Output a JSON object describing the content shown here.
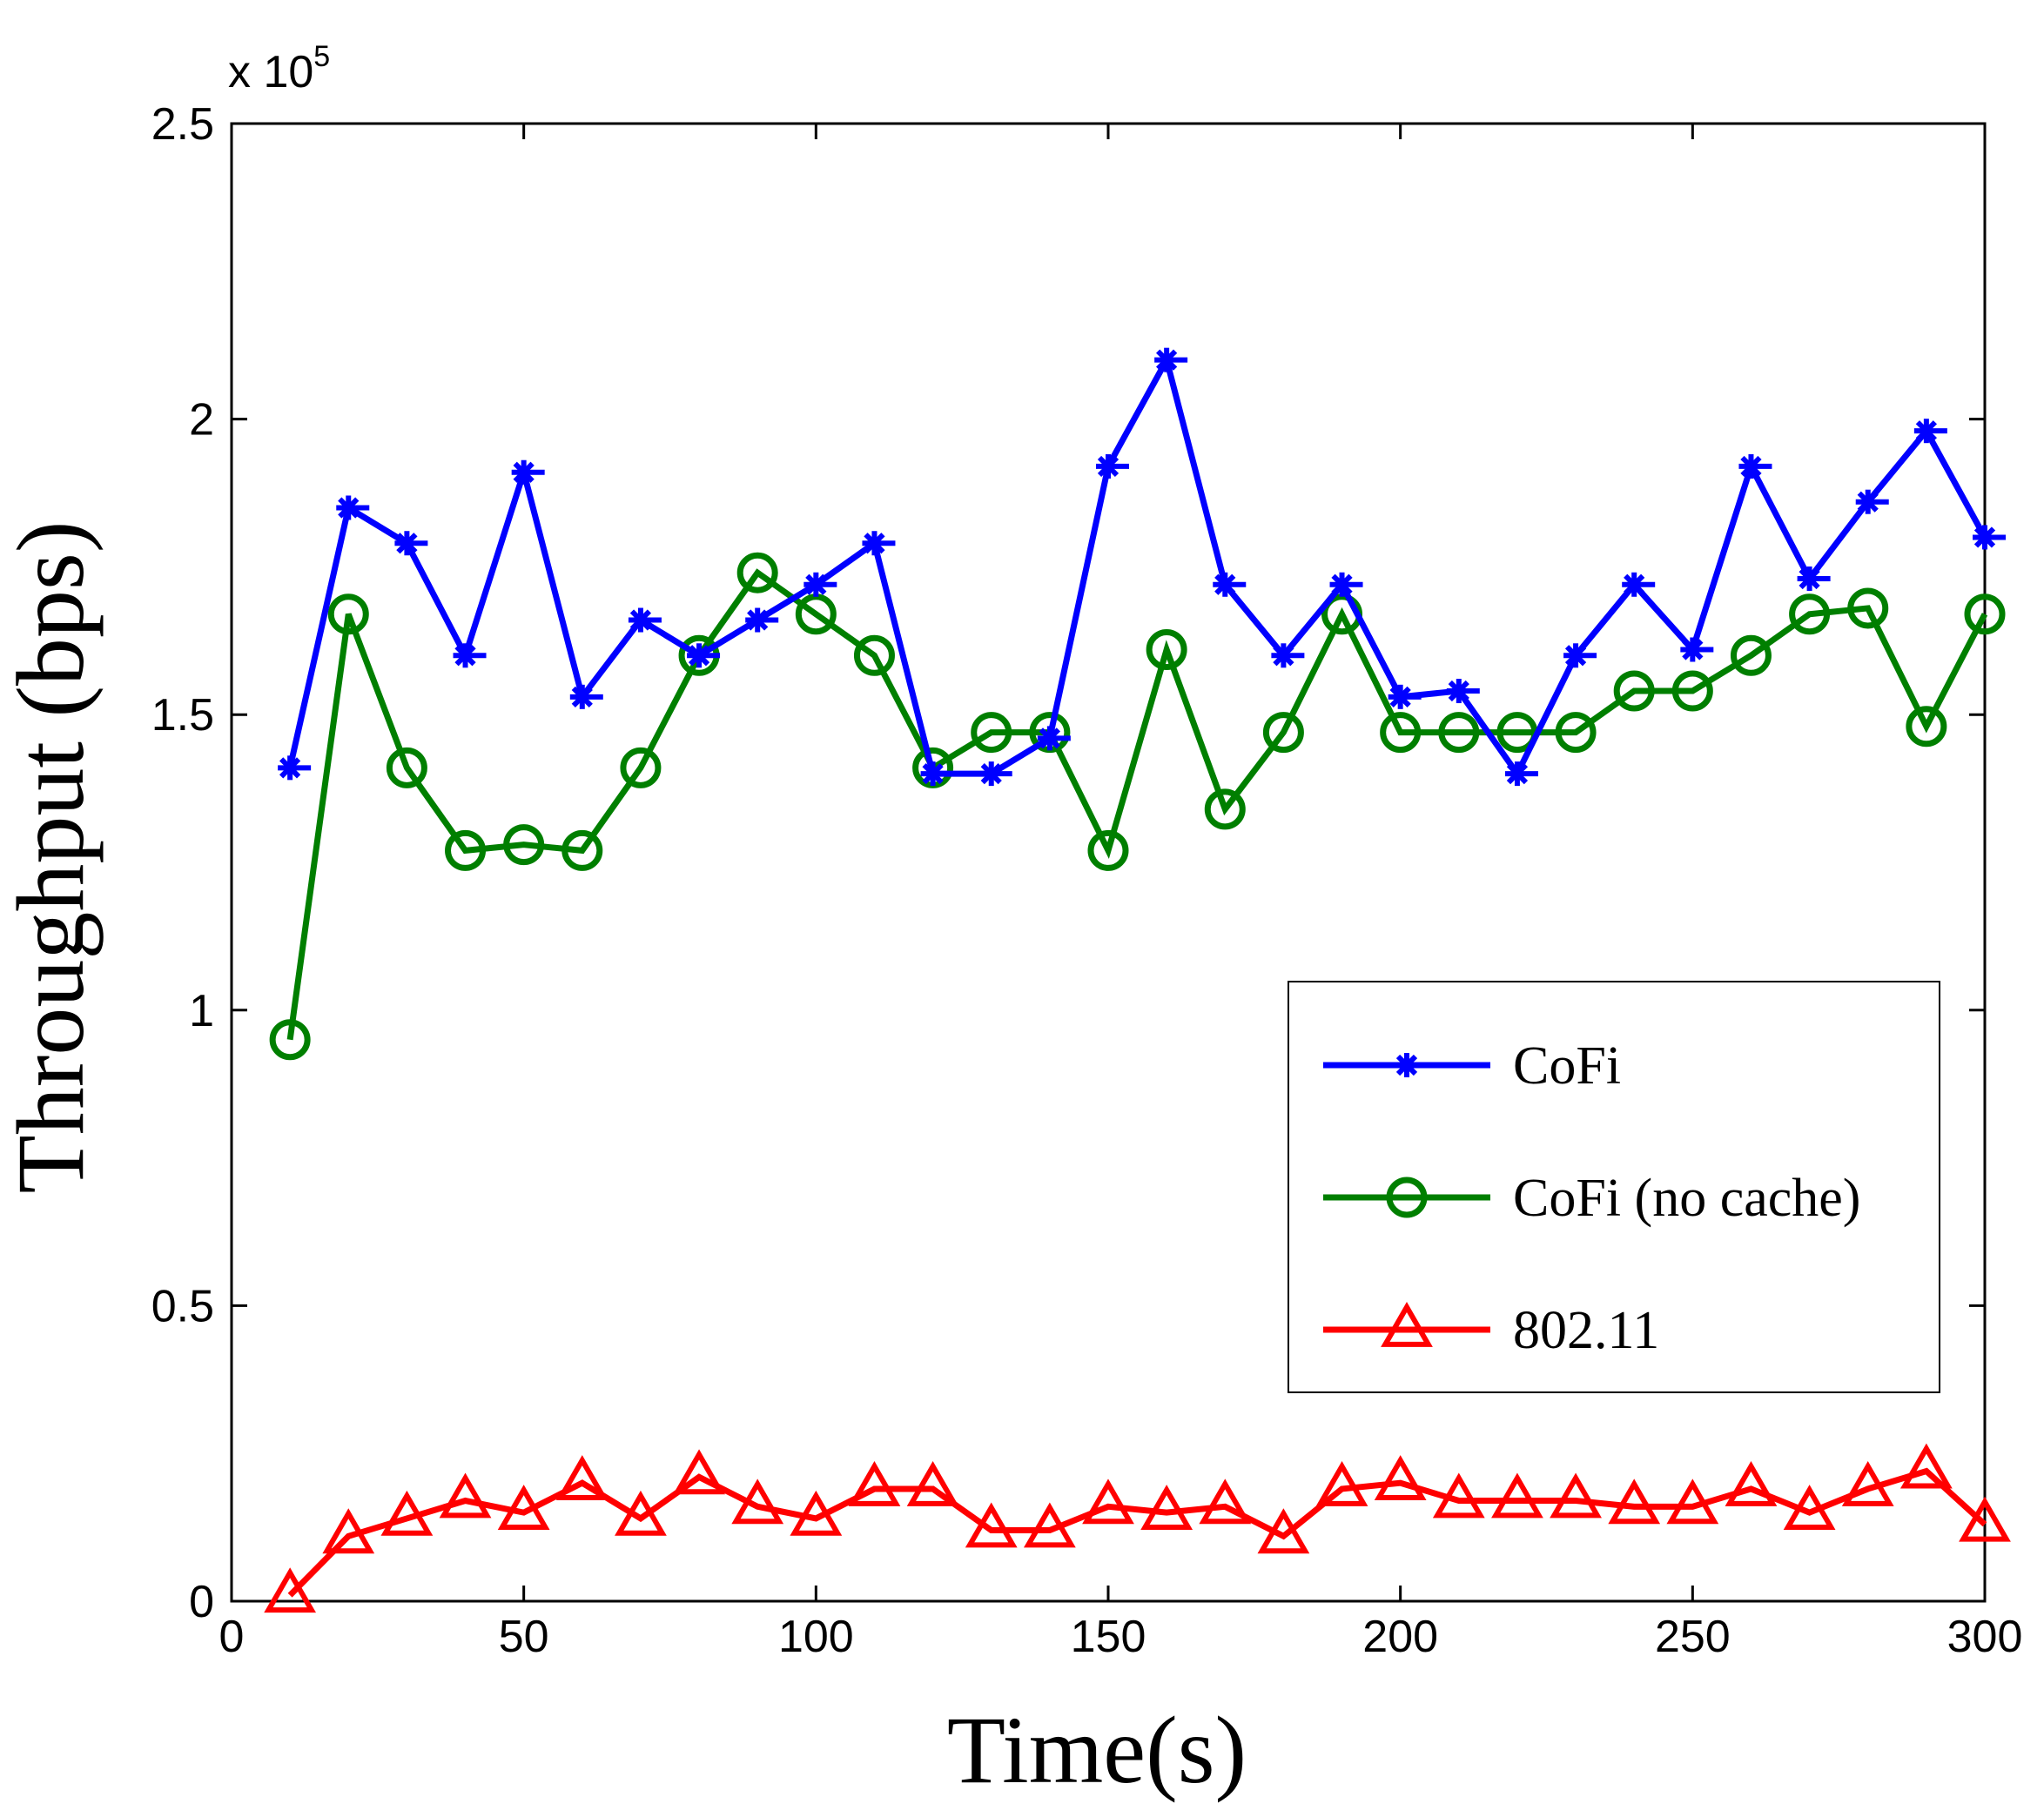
{
  "chart_data": {
    "type": "line",
    "xlabel": "Time(s)",
    "ylabel": "Throughput (bps)",
    "y_exponent_label": "x 10",
    "y_exponent_power": "5",
    "xlim": [
      0,
      300
    ],
    "ylim": [
      0,
      250000
    ],
    "x_ticks": [
      0,
      50,
      100,
      150,
      200,
      250,
      300
    ],
    "x_tick_labels": [
      "0",
      "50",
      "100",
      "150",
      "200",
      "250",
      "300"
    ],
    "y_ticks": [
      0,
      50000,
      100000,
      150000,
      200000,
      250000
    ],
    "y_tick_labels": [
      "0",
      "0.5",
      "1",
      "1.5",
      "2",
      "2.5"
    ],
    "grid": false,
    "legend_position": "lower-right",
    "x": [
      10,
      20,
      30,
      40,
      50,
      60,
      70,
      80,
      90,
      100,
      110,
      120,
      130,
      140,
      150,
      160,
      170,
      180,
      190,
      200,
      210,
      220,
      230,
      240,
      250,
      260,
      270,
      280,
      290,
      300
    ],
    "series": [
      {
        "name": "CoFi",
        "color": "#0000ff",
        "marker": "asterisk",
        "values": [
          141000,
          185000,
          179000,
          160000,
          191000,
          153000,
          166000,
          160000,
          166000,
          172000,
          179000,
          140000,
          140000,
          146000,
          192000,
          210000,
          172000,
          160000,
          172000,
          153000,
          154000,
          140000,
          160000,
          172000,
          161000,
          192000,
          173000,
          186000,
          198000,
          180000
        ]
      },
      {
        "name": "CoFi (no cache)",
        "color": "#007f00",
        "marker": "circle",
        "values": [
          95000,
          167000,
          141000,
          127000,
          128000,
          127000,
          141000,
          160000,
          174000,
          167000,
          160000,
          141000,
          147000,
          147000,
          127000,
          161000,
          134000,
          147000,
          167000,
          147000,
          147000,
          147000,
          147000,
          154000,
          154000,
          160000,
          167000,
          168000,
          148000,
          167000
        ]
      },
      {
        "name": "802.11",
        "color": "#ff0000",
        "marker": "triangle",
        "values": [
          1000,
          11000,
          14000,
          17000,
          15000,
          20000,
          14000,
          21000,
          16000,
          14000,
          19000,
          19000,
          12000,
          12000,
          16000,
          15000,
          16000,
          11000,
          19000,
          20000,
          17000,
          17000,
          17000,
          16000,
          16000,
          19000,
          15000,
          19000,
          22000,
          13000
        ]
      }
    ]
  }
}
